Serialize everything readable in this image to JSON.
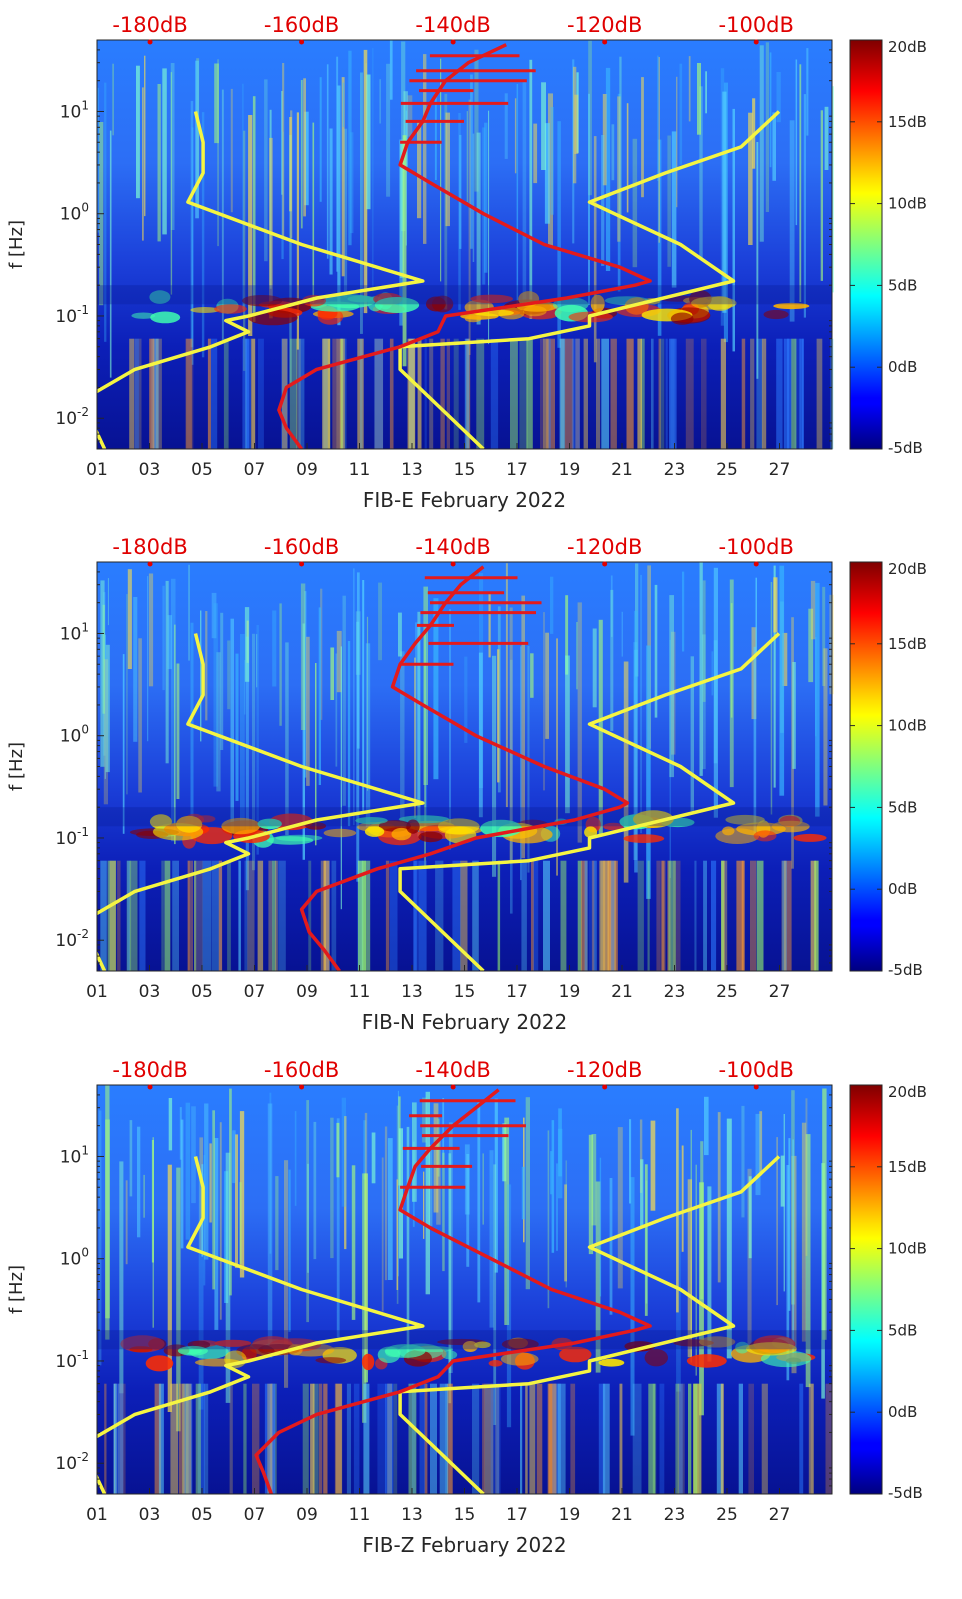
{
  "chart_data": [
    {
      "type": "heatmap",
      "title": "",
      "xlabel": "FIB-E February 2022",
      "ylabel": "f [Hz]",
      "x_ticks": [
        "01",
        "03",
        "05",
        "07",
        "09",
        "11",
        "13",
        "15",
        "17",
        "19",
        "21",
        "23",
        "25",
        "27"
      ],
      "y_ticks": [
        "10-2",
        "10-1",
        "100",
        "101"
      ],
      "xlim": [
        1,
        29
      ],
      "ylim_hz": [
        0.005,
        50
      ],
      "y_scale": "log",
      "top_axis_ticks": [
        "-180dB",
        "-160dB",
        "-140dB",
        "-120dB",
        "-100dB"
      ],
      "top_axis_range_db": [
        -187,
        -90
      ],
      "colorbar_ticks": [
        "20dB",
        "15dB",
        "10dB",
        "5dB",
        "0dB",
        "-5dB"
      ],
      "colorbar_range_db": [
        -5,
        20
      ],
      "colors": {
        "noise_curve": "#e31a1c",
        "model_curves": "#f5f542"
      },
      "noise_psd_db": {
        "freqs_hz": [
          0.005,
          0.008,
          0.012,
          0.02,
          0.03,
          0.05,
          0.07,
          0.1,
          0.15,
          0.2,
          0.22,
          0.3,
          0.5,
          1.0,
          2.0,
          3.0,
          5.0,
          8.0,
          12.0,
          20.0,
          30.0,
          45.0
        ],
        "db": [
          -160,
          -162,
          -163,
          -162,
          -158,
          -147,
          -142,
          -141,
          -125,
          -116,
          -114,
          -118,
          -128,
          -136,
          -143,
          -147,
          -146,
          -144,
          -143,
          -141,
          -138,
          -133
        ]
      },
      "model_low_db": {
        "freqs_hz": [
          0.005,
          0.015,
          0.03,
          0.05,
          0.07,
          0.09,
          0.1,
          0.15,
          0.22,
          0.5,
          1.3,
          2.5,
          5.0,
          10.0
        ],
        "db": [
          -186,
          -189,
          -182,
          -172,
          -167,
          -170,
          -167,
          -158,
          -144,
          -160,
          -175,
          -173,
          -173,
          -174
        ]
      },
      "model_high_db": {
        "freqs_hz": [
          0.005,
          0.03,
          0.05,
          0.06,
          0.08,
          0.1,
          0.22,
          0.5,
          1.3,
          2.5,
          4.5,
          10.0
        ],
        "db": [
          -136,
          -147,
          -147,
          -130,
          -122,
          -122,
          -103,
          -110,
          -122,
          -112,
          -102,
          -97
        ]
      }
    },
    {
      "type": "heatmap",
      "title": "",
      "xlabel": "FIB-N February 2022",
      "ylabel": "f [Hz]",
      "x_ticks": [
        "01",
        "03",
        "05",
        "07",
        "09",
        "11",
        "13",
        "15",
        "17",
        "19",
        "21",
        "23",
        "25",
        "27"
      ],
      "y_ticks": [
        "10-2",
        "10-1",
        "100",
        "101"
      ],
      "xlim": [
        1,
        29
      ],
      "ylim_hz": [
        0.005,
        50
      ],
      "y_scale": "log",
      "top_axis_ticks": [
        "-180dB",
        "-160dB",
        "-140dB",
        "-120dB",
        "-100dB"
      ],
      "top_axis_range_db": [
        -187,
        -90
      ],
      "colorbar_ticks": [
        "20dB",
        "15dB",
        "10dB",
        "5dB",
        "0dB",
        "-5dB"
      ],
      "colorbar_range_db": [
        -5,
        20
      ],
      "colors": {
        "noise_curve": "#e31a1c",
        "model_curves": "#f5f542"
      },
      "noise_psd_db": {
        "freqs_hz": [
          0.005,
          0.008,
          0.012,
          0.02,
          0.03,
          0.05,
          0.07,
          0.1,
          0.15,
          0.2,
          0.22,
          0.3,
          0.5,
          1.0,
          2.0,
          3.0,
          5.0,
          8.0,
          12.0,
          20.0,
          30.0,
          45.0
        ],
        "db": [
          -155,
          -157,
          -159,
          -160,
          -158,
          -150,
          -143,
          -137,
          -124,
          -118,
          -117,
          -120,
          -128,
          -137,
          -144,
          -148,
          -147,
          -145,
          -143,
          -141,
          -139,
          -136
        ]
      },
      "model_low_db": {
        "freqs_hz": [
          0.005,
          0.015,
          0.03,
          0.05,
          0.07,
          0.09,
          0.1,
          0.15,
          0.22,
          0.5,
          1.3,
          2.5,
          5.0,
          10.0
        ],
        "db": [
          -186,
          -189,
          -182,
          -172,
          -167,
          -170,
          -167,
          -158,
          -144,
          -160,
          -175,
          -173,
          -173,
          -174
        ]
      },
      "model_high_db": {
        "freqs_hz": [
          0.005,
          0.03,
          0.05,
          0.06,
          0.08,
          0.1,
          0.22,
          0.5,
          1.3,
          2.5,
          4.5,
          10.0
        ],
        "db": [
          -136,
          -147,
          -147,
          -130,
          -122,
          -122,
          -103,
          -110,
          -122,
          -112,
          -102,
          -97
        ]
      }
    },
    {
      "type": "heatmap",
      "title": "",
      "xlabel": "FIB-Z February 2022",
      "ylabel": "f [Hz]",
      "x_ticks": [
        "01",
        "03",
        "05",
        "07",
        "09",
        "11",
        "13",
        "15",
        "17",
        "19",
        "21",
        "23",
        "25",
        "27"
      ],
      "y_ticks": [
        "10-2",
        "10-1",
        "100",
        "101"
      ],
      "xlim": [
        1,
        29
      ],
      "ylim_hz": [
        0.005,
        50
      ],
      "y_scale": "log",
      "top_axis_ticks": [
        "-180dB",
        "-160dB",
        "-140dB",
        "-120dB",
        "-100dB"
      ],
      "top_axis_range_db": [
        -187,
        -90
      ],
      "colorbar_ticks": [
        "20dB",
        "15dB",
        "10dB",
        "5dB",
        "0dB",
        "-5dB"
      ],
      "colorbar_range_db": [
        -5,
        20
      ],
      "colors": {
        "noise_curve": "#e31a1c",
        "model_curves": "#f5f542"
      },
      "noise_psd_db": {
        "freqs_hz": [
          0.005,
          0.008,
          0.012,
          0.02,
          0.03,
          0.05,
          0.07,
          0.1,
          0.15,
          0.2,
          0.22,
          0.3,
          0.5,
          1.0,
          2.0,
          3.0,
          5.0,
          8.0,
          12.0,
          20.0,
          30.0,
          45.0
        ],
        "db": [
          -164,
          -165,
          -166,
          -163,
          -158,
          -147,
          -142,
          -140,
          -124,
          -116,
          -114,
          -118,
          -127,
          -135,
          -143,
          -147,
          -146,
          -145,
          -143,
          -140,
          -137,
          -134
        ]
      },
      "model_low_db": {
        "freqs_hz": [
          0.005,
          0.015,
          0.03,
          0.05,
          0.07,
          0.09,
          0.1,
          0.15,
          0.22,
          0.5,
          1.3,
          2.5,
          5.0,
          10.0
        ],
        "db": [
          -186,
          -189,
          -182,
          -172,
          -167,
          -170,
          -167,
          -158,
          -144,
          -160,
          -175,
          -173,
          -173,
          -174
        ]
      },
      "model_high_db": {
        "freqs_hz": [
          0.005,
          0.03,
          0.05,
          0.06,
          0.08,
          0.1,
          0.22,
          0.5,
          1.3,
          2.5,
          4.5,
          10.0
        ],
        "db": [
          -136,
          -147,
          -147,
          -130,
          -122,
          -122,
          -103,
          -110,
          -122,
          -112,
          -102,
          -97
        ]
      }
    }
  ]
}
